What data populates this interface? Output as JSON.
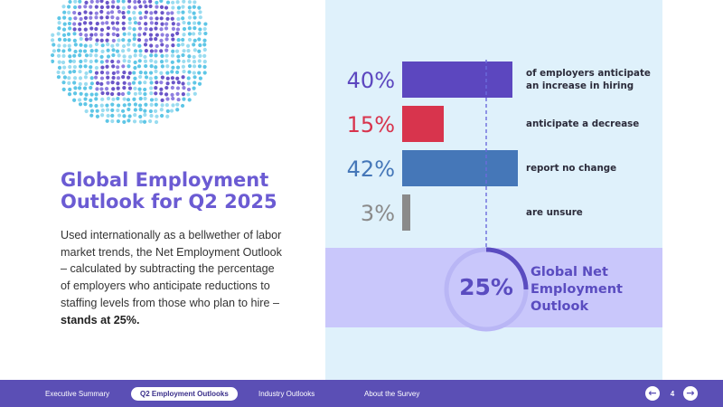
{
  "slide": {
    "title_line1": "Global Employment",
    "title_line2": "Outlook for Q2 2025",
    "body_text": "Used internationally as a bellwether of labor market trends, the Net Employment Outlook – calculated by subtracting the percentage of employers who anticipate reductions to staffing levels from those who plan to hire – ",
    "body_emphasis": "stands at 25%."
  },
  "chart_data": {
    "type": "bar",
    "orientation": "horizontal",
    "xlim": [
      0,
      42
    ],
    "bars": [
      {
        "value": 40,
        "pct_label": "40%",
        "label_line1": "of employers anticipate",
        "label_line2": "an increase in hiring",
        "color": "#5c47bf"
      },
      {
        "value": 15,
        "pct_label": "15%",
        "label_line1": "anticipate a decrease",
        "label_line2": "",
        "color": "#d8344d"
      },
      {
        "value": 42,
        "pct_label": "42%",
        "label_line1": "report no change",
        "label_line2": "",
        "color": "#4577b8"
      },
      {
        "value": 3,
        "pct_label": "3%",
        "label_line1": "are unsure",
        "label_line2": "",
        "color": "#8a8a8a"
      }
    ],
    "summary": {
      "value": 25,
      "value_label": "25%",
      "label_line1": "Global Net",
      "label_line2": "Employment",
      "label_line3": "Outlook",
      "color": "#5a4cc0"
    }
  },
  "footer": {
    "nav": [
      "Executive Summary",
      "Q2 Employment Outlooks",
      "Industry Outlooks",
      "About the Survey"
    ],
    "active_index": 1,
    "page_number": "4",
    "prev_icon": "arrow-left-icon",
    "next_icon": "arrow-right-icon"
  },
  "colors": {
    "accent": "#6b5bd3",
    "panel": "#dff1fb",
    "band": "#c9c7fb",
    "footer": "#5b4fb5"
  }
}
